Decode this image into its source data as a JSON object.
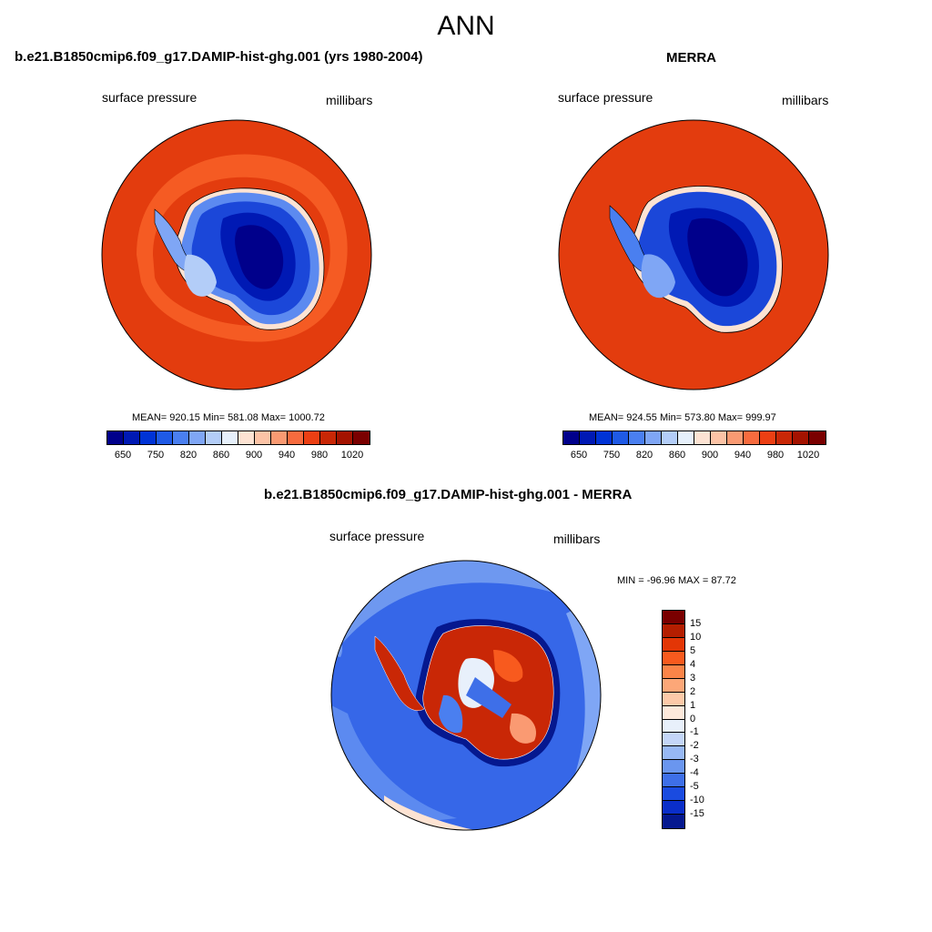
{
  "title": "ANN",
  "panels": {
    "model": {
      "title": "b.e21.B1850cmip6.f09_g17.DAMIP-hist-ghg.001 (yrs 1980-2004)",
      "left_label": "surface pressure",
      "right_label": "millibars",
      "stats": "MEAN= 920.15  Min= 581.08  Max= 1000.72"
    },
    "obs": {
      "title": "MERRA",
      "left_label": "surface pressure",
      "right_label": "millibars",
      "stats": "MEAN= 924.55  Min= 573.80  Max= 999.97"
    },
    "diff": {
      "title": "b.e21.B1850cmip6.f09_g17.DAMIP-hist-ghg.001 - MERRA",
      "left_label": "surface pressure",
      "right_label": "millibars",
      "stats": "MIN = -96.96 MAX =  87.72"
    }
  },
  "colorbar_abs": {
    "colors": [
      "#00008b",
      "#0019b4",
      "#0033d6",
      "#1f5ae6",
      "#4a7ff0",
      "#7fa6f5",
      "#b3cdf8",
      "#e6f0fb",
      "#fde3d3",
      "#fcc3a6",
      "#fa9a72",
      "#f76b3e",
      "#ec3f13",
      "#c92706",
      "#a41300",
      "#7a0000"
    ],
    "tick_labels": [
      "650",
      "750",
      "820",
      "860",
      "900",
      "940",
      "980",
      "1020"
    ]
  },
  "colorbar_diff": {
    "colors": [
      "#7a0000",
      "#b41e00",
      "#e33606",
      "#f85a1e",
      "#fb8448",
      "#fca778",
      "#fdcaa9",
      "#fde9db",
      "#e8f0fb",
      "#c4d6f8",
      "#97b8f4",
      "#6a96ef",
      "#3e6fe8",
      "#1a4be0",
      "#0a2ec9",
      "#05188f"
    ],
    "tick_labels": [
      "15",
      "10",
      "5",
      "4",
      "3",
      "2",
      "1",
      "0",
      "-1",
      "-2",
      "-3",
      "-4",
      "-5",
      "-10",
      "-15"
    ]
  },
  "colors": {
    "ocean_abs": "#e33c0e",
    "ocean_ring": "#f55b23",
    "ice_deep": "#00008b",
    "ice_mid": "#1b47d9",
    "ice_light": "#5c8af0",
    "ice_edge": "#b7cff8",
    "diff_ocean": "#3667e8",
    "diff_ocean_light": "#6e98f0",
    "diff_land_red": "#c92706"
  }
}
